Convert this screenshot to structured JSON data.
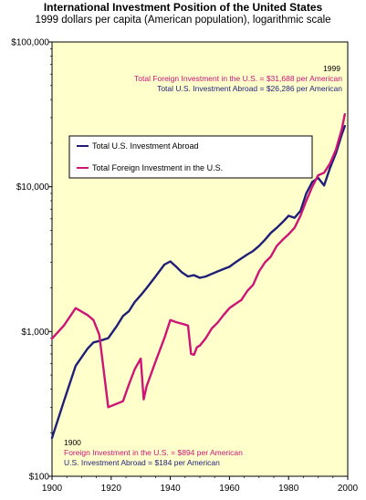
{
  "chart_data": {
    "type": "line",
    "title": "International Investment Position of the United States",
    "subtitle": "1999 dollars per capita (American population), logarithmic scale",
    "xlabel": "",
    "ylabel": "",
    "y_scale": "log",
    "xlim": [
      1900,
      2000
    ],
    "ylim": [
      100,
      100000
    ],
    "x_ticks": [
      1900,
      1920,
      1940,
      1960,
      1980,
      2000
    ],
    "x_tick_labels": [
      "1900",
      "1920",
      "1940",
      "1960",
      "1980",
      "2000"
    ],
    "y_ticks": [
      100,
      1000,
      10000,
      100000
    ],
    "y_tick_labels": [
      "$100",
      "$1,000",
      "$10,000",
      "$100,000"
    ],
    "grid": false,
    "background_color": "#ffffcc",
    "legend_position": "upper-left",
    "series": [
      {
        "name": "Total U.S. Investment Abroad",
        "color": "#1f1f78",
        "x": [
          1900,
          1904,
          1908,
          1912,
          1914,
          1916,
          1919,
          1922,
          1924,
          1926,
          1928,
          1930,
          1932,
          1935,
          1938,
          1940,
          1942,
          1944,
          1946,
          1948,
          1950,
          1952,
          1954,
          1956,
          1958,
          1960,
          1962,
          1964,
          1966,
          1968,
          1970,
          1972,
          1974,
          1976,
          1978,
          1980,
          1982,
          1984,
          1986,
          1988,
          1990,
          1992,
          1994,
          1996,
          1998,
          1999
        ],
        "values": [
          184,
          330,
          580,
          760,
          840,
          860,
          900,
          1100,
          1280,
          1380,
          1600,
          1780,
          2000,
          2400,
          2900,
          3050,
          2800,
          2550,
          2400,
          2450,
          2350,
          2400,
          2500,
          2600,
          2700,
          2800,
          3000,
          3200,
          3400,
          3600,
          3900,
          4300,
          4800,
          5200,
          5700,
          6300,
          6100,
          6800,
          9000,
          10800,
          11500,
          10200,
          13500,
          17000,
          23000,
          26286
        ]
      },
      {
        "name": "Total Foreign Investment in the U.S.",
        "color": "#cc1577",
        "x": [
          1900,
          1904,
          1908,
          1912,
          1914,
          1916,
          1919,
          1924,
          1926,
          1928,
          1930,
          1931,
          1932,
          1935,
          1938,
          1940,
          1942,
          1944,
          1946,
          1947,
          1948,
          1949,
          1950,
          1952,
          1954,
          1956,
          1958,
          1960,
          1962,
          1964,
          1966,
          1968,
          1970,
          1972,
          1974,
          1976,
          1978,
          1980,
          1982,
          1984,
          1986,
          1988,
          1990,
          1992,
          1994,
          1996,
          1998,
          1999
        ],
        "values": [
          894,
          1100,
          1450,
          1300,
          1200,
          950,
          300,
          330,
          430,
          550,
          650,
          340,
          420,
          620,
          900,
          1200,
          1160,
          1130,
          1100,
          700,
          690,
          780,
          800,
          900,
          1050,
          1150,
          1300,
          1450,
          1550,
          1650,
          1900,
          2100,
          2600,
          3000,
          3300,
          3900,
          4300,
          4700,
          5200,
          6300,
          8000,
          10000,
          12000,
          12500,
          14500,
          18000,
          25000,
          31688
        ]
      }
    ],
    "annotations": [
      {
        "text": "1999",
        "color": "#000000"
      },
      {
        "text": "Total Foreign Investment in the U.S. = $31,688 per American",
        "color": "#cc1577"
      },
      {
        "text": "Total U.S. Investment Abroad = $26,286 per American",
        "color": "#1f1f78"
      },
      {
        "text": "1900",
        "color": "#000000"
      },
      {
        "text": "Foreign Investment in the U.S. = $894 per American",
        "color": "#cc1577"
      },
      {
        "text": "U.S. Investment Abroad = $184 per American",
        "color": "#1f1f78"
      }
    ]
  }
}
